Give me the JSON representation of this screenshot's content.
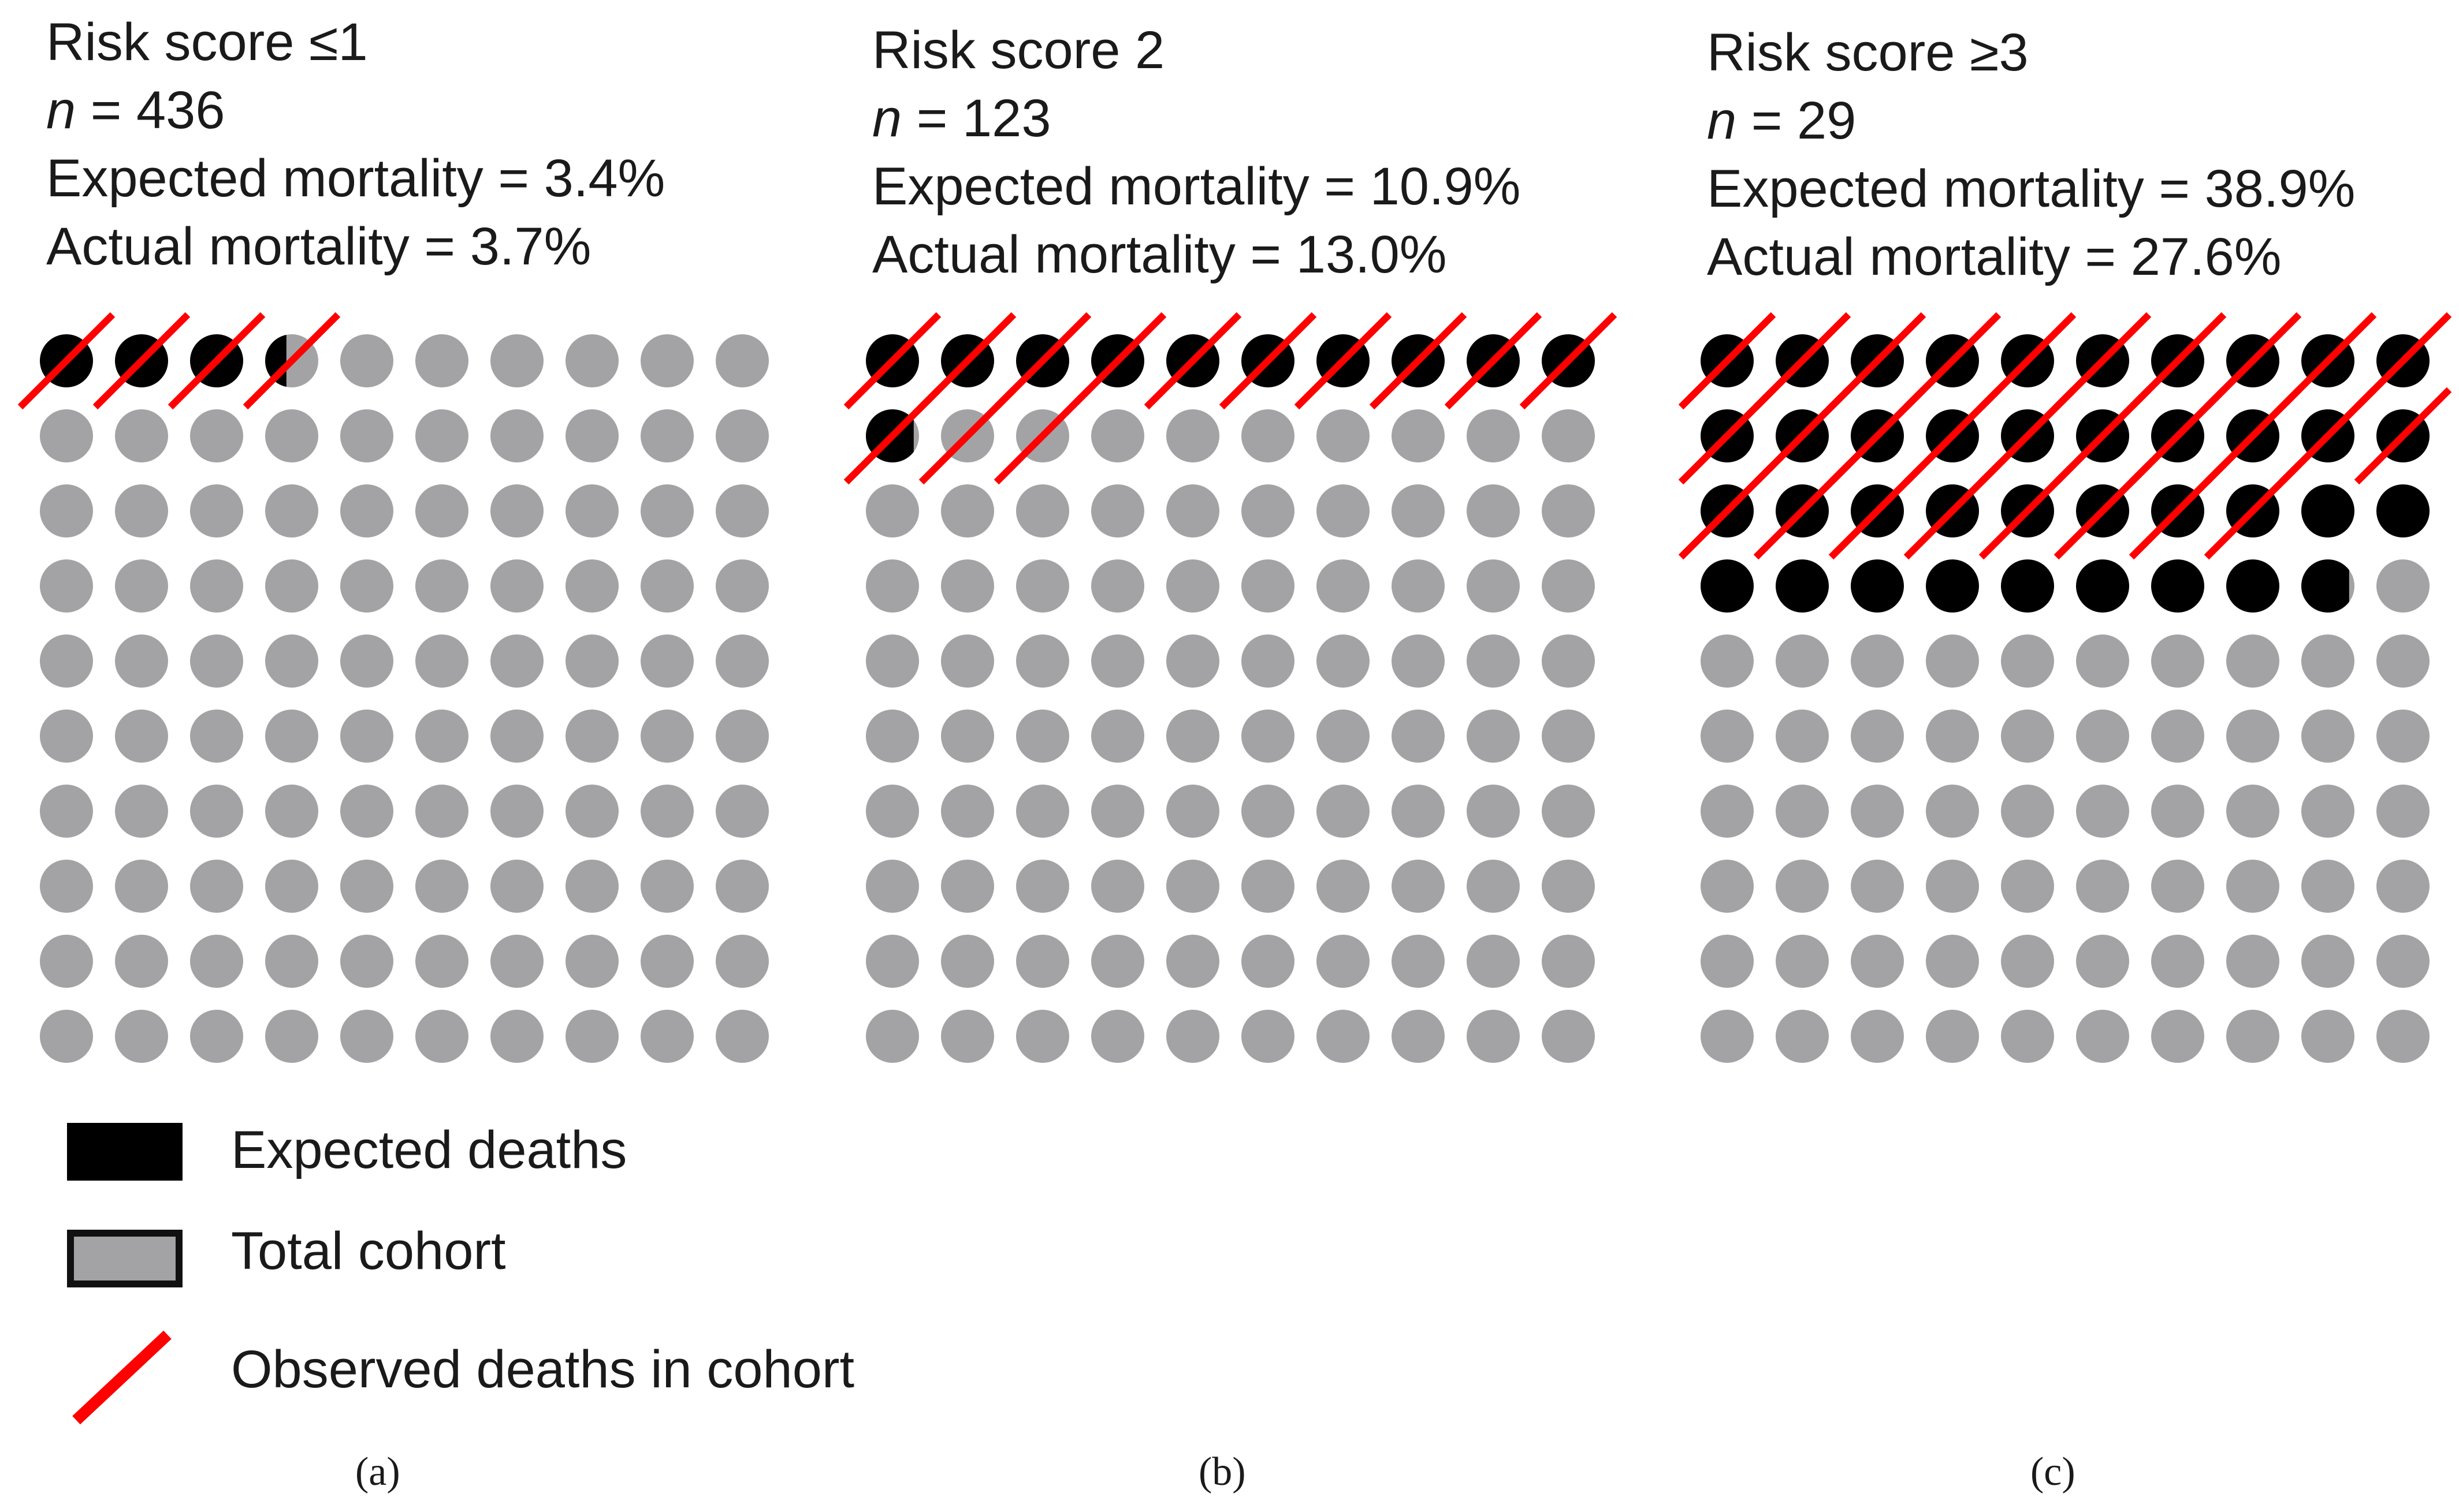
{
  "chart_data": {
    "type": "icon-array",
    "description_units": "each grid = 100 circles representing 100% of the cohort; 1 circle = 1%",
    "panels": [
      {
        "id": "a",
        "title": "Risk score ≤1",
        "n_prefix": "n",
        "n_label": " = 436",
        "n": 436,
        "expected_label": "Expected mortality = 3.4%",
        "actual_label": "Actual mortality = 3.7%",
        "expected_mortality_pct": 3.4,
        "actual_mortality_pct": 3.7,
        "caption": "(a)"
      },
      {
        "id": "b",
        "title": "Risk score 2",
        "n_prefix": "n",
        "n_label": " = 123",
        "n": 123,
        "expected_label": "Expected mortality = 10.9%",
        "actual_label": "Actual mortality = 13.0%",
        "expected_mortality_pct": 10.9,
        "actual_mortality_pct": 13.0,
        "caption": "(b)"
      },
      {
        "id": "c",
        "title": "Risk score ≥3",
        "n_prefix": "n",
        "n_label": " = 29",
        "n": 29,
        "expected_label": "Expected mortality = 38.9%",
        "actual_label": "Actual mortality = 27.6%",
        "expected_mortality_pct": 38.9,
        "actual_mortality_pct": 27.6,
        "caption": "(c)"
      }
    ],
    "grid_rows": 10,
    "grid_cols": 10,
    "colors": {
      "expected": "#000000",
      "total": "#a3a3a6",
      "observed": "#ff0000"
    },
    "legend": [
      {
        "key": "expected",
        "label": "Expected deaths"
      },
      {
        "key": "total",
        "label": "Total cohort"
      },
      {
        "key": "observed",
        "label": "Observed deaths in cohort"
      }
    ]
  }
}
